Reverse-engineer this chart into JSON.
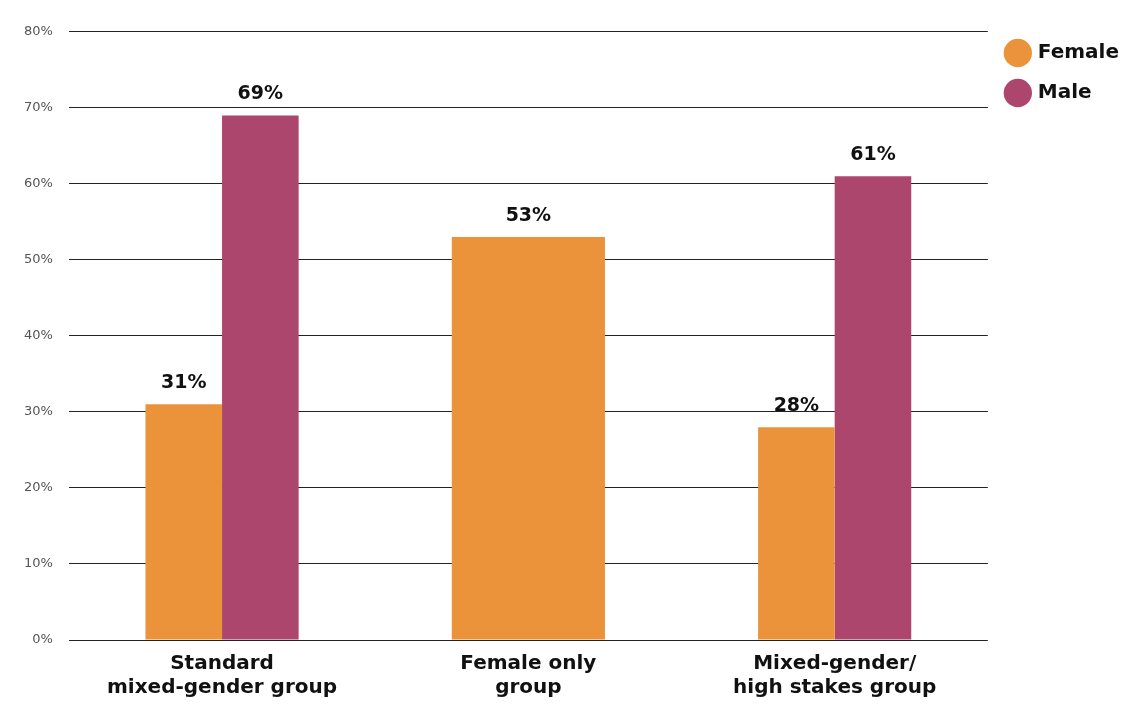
{
  "chart_data": {
    "type": "bar",
    "categories": [
      "Standard\nmixed-gender group",
      "Female only\ngroup",
      "Mixed-gender/\nhigh stakes group"
    ],
    "series": [
      {
        "name": "Female",
        "color": "#eb933a",
        "values": [
          31,
          53,
          28
        ],
        "value_labels": [
          "31%",
          "53%",
          "28%"
        ]
      },
      {
        "name": "Male",
        "color": "#ad466c",
        "values": [
          69,
          null,
          61
        ],
        "value_labels": [
          "69%",
          null,
          "61%"
        ]
      }
    ],
    "ylim": [
      0,
      80
    ],
    "yticks": [
      {
        "value": 0,
        "label": "0%"
      },
      {
        "value": 10,
        "label": "10%"
      },
      {
        "value": 20,
        "label": "20%"
      },
      {
        "value": 30,
        "label": "30%"
      },
      {
        "value": 40,
        "label": "40%"
      },
      {
        "value": 50,
        "label": "50%"
      },
      {
        "value": 60,
        "label": "60%"
      },
      {
        "value": 70,
        "label": "70%"
      },
      {
        "value": 80,
        "label": "80%"
      }
    ],
    "grid": "y",
    "legend": "top right"
  }
}
